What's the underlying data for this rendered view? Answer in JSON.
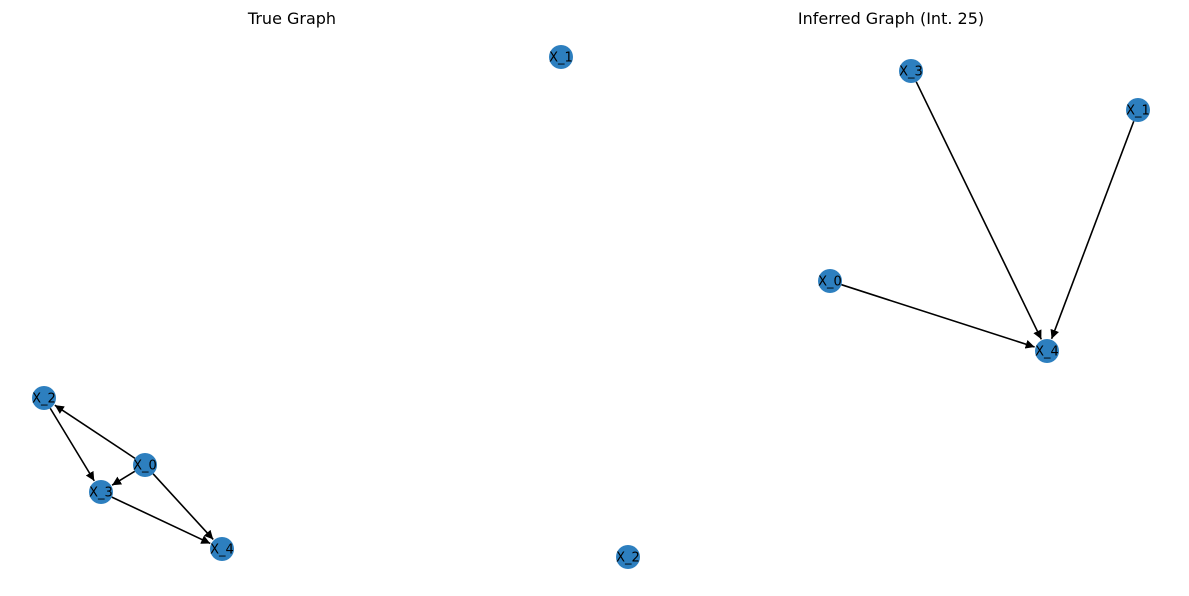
{
  "panels": [
    {
      "id": "true-graph",
      "title": "True Graph",
      "node_color": "#2d7fbf",
      "nodes": [
        {
          "id": "X_0",
          "label": "X_0"
        },
        {
          "id": "X_1",
          "label": "X_1"
        },
        {
          "id": "X_2",
          "label": "X_2"
        },
        {
          "id": "X_3",
          "label": "X_3"
        },
        {
          "id": "X_4",
          "label": "X_4"
        }
      ],
      "edges": [
        {
          "from": "X_0",
          "to": "X_2"
        },
        {
          "from": "X_0",
          "to": "X_3"
        },
        {
          "from": "X_0",
          "to": "X_4"
        },
        {
          "from": "X_2",
          "to": "X_3"
        },
        {
          "from": "X_3",
          "to": "X_4"
        }
      ]
    },
    {
      "id": "inferred-graph",
      "title": "Inferred Graph (Int. 25)",
      "node_color": "#2d7fbf",
      "nodes": [
        {
          "id": "X_0",
          "label": "X_0"
        },
        {
          "id": "X_1",
          "label": "X_1"
        },
        {
          "id": "X_2",
          "label": "X_2"
        },
        {
          "id": "X_3",
          "label": "X_3"
        },
        {
          "id": "X_4",
          "label": "X_4"
        }
      ],
      "edges": [
        {
          "from": "X_3",
          "to": "X_4"
        },
        {
          "from": "X_1",
          "to": "X_4"
        },
        {
          "from": "X_0",
          "to": "X_4"
        }
      ]
    }
  ]
}
